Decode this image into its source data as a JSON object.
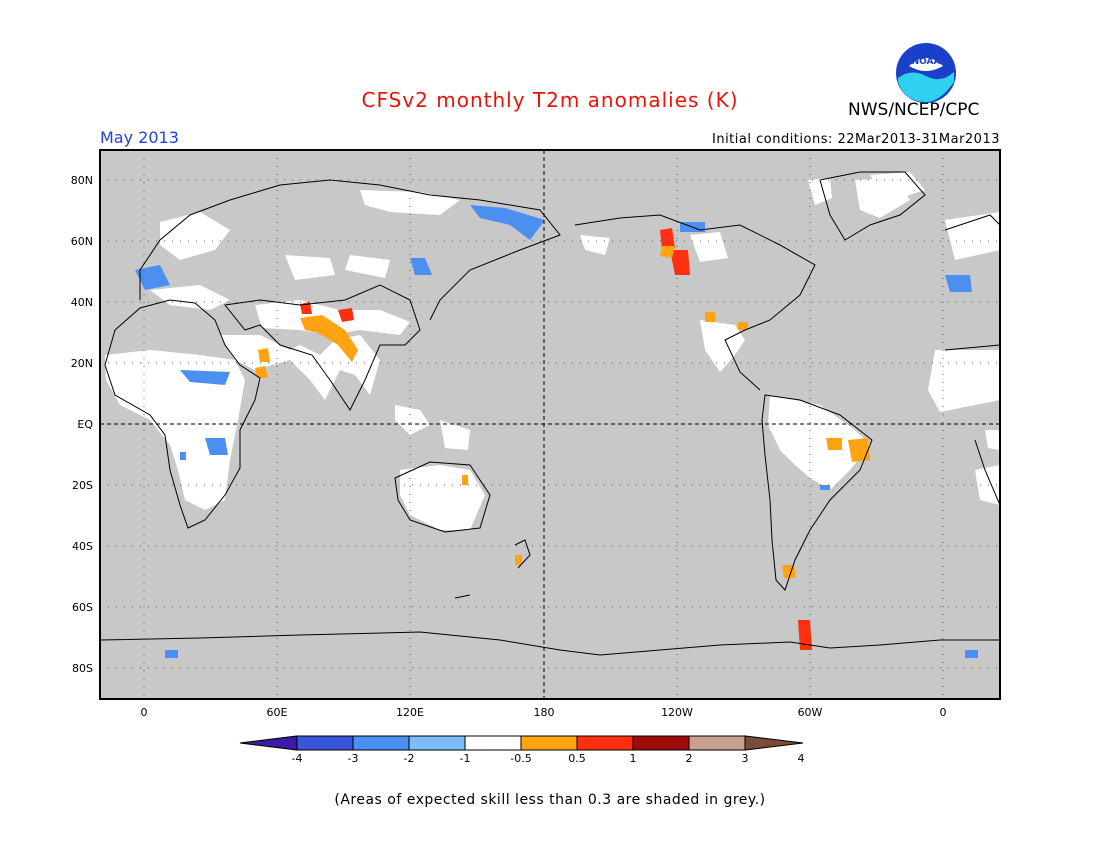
{
  "title": "CFSv2 monthly T2m anomalies (K)",
  "month": "May 2013",
  "initial_conditions": "Initial conditions: 22Mar2013-31Mar2013",
  "organization": "NWS/NCEP/CPC",
  "logo_text": "NOAA",
  "footnote": "(Areas of expected skill less than 0.3 are shaded in grey.)",
  "map": {
    "lat_labels": [
      "80N",
      "60N",
      "40N",
      "20N",
      "EQ",
      "20S",
      "40S",
      "60S",
      "80S"
    ],
    "lon_labels": [
      "0",
      "60E",
      "120E",
      "180",
      "120W",
      "60W",
      "0"
    ],
    "mask_color": "#c8c8c8",
    "land_color": "#ffffff"
  },
  "colorbar": {
    "labels": [
      "-4",
      "-3",
      "-2",
      "-1",
      "-0.5",
      "0.5",
      "1",
      "2",
      "3",
      "4"
    ],
    "colors": [
      "#3b1aa6",
      "#3a55d6",
      "#4b8ff0",
      "#7dbdf7",
      "#ffffff",
      "#ffa312",
      "#ff3010",
      "#a00c0c",
      "#c8a090",
      "#7a4a3a"
    ]
  }
}
